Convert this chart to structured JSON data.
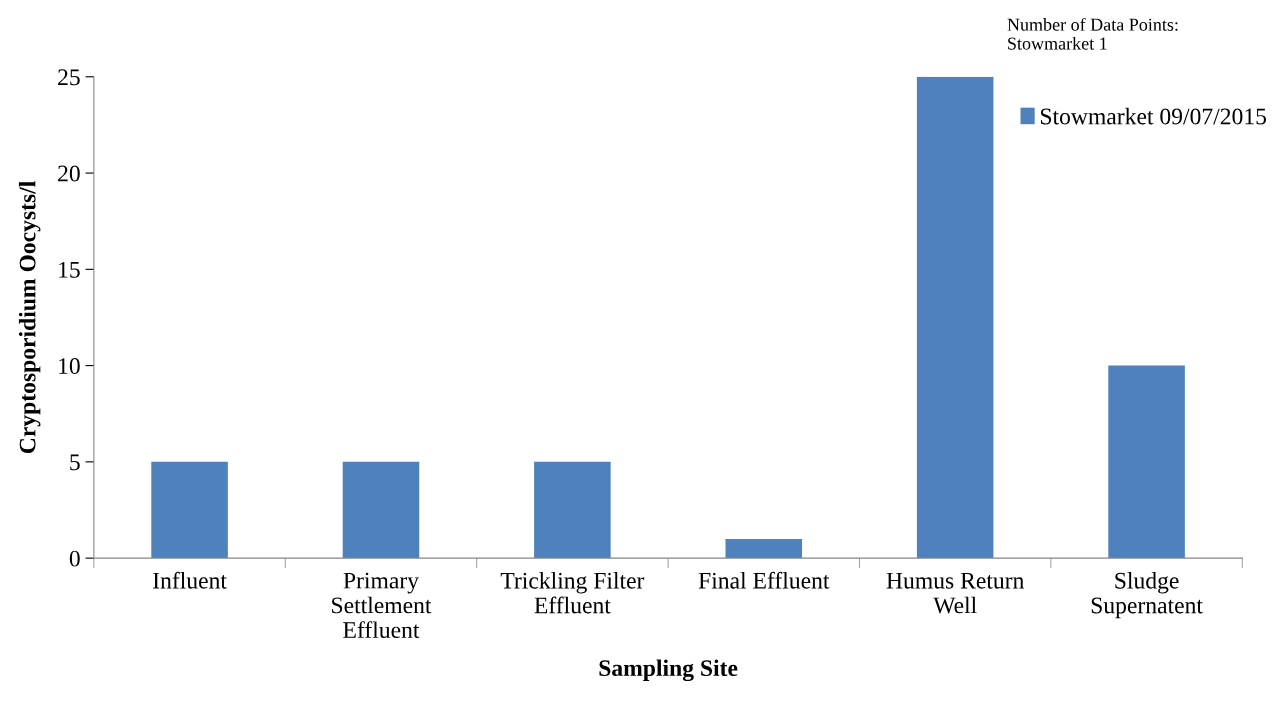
{
  "chart_data": {
    "type": "bar",
    "xlabel": "Sampling Site",
    "ylabel": "Cryptosporidium Oocysts/l",
    "categories": [
      "Influent",
      "Primary\nSettlement\nEffluent",
      "Trickling Filter\nEffluent",
      "Final Effluent",
      "Humus Return\nWell",
      "Sludge\nSupernatent"
    ],
    "series": [
      {
        "name": "Stowmarket 09/07/2015",
        "color": "#4f81bd",
        "values": [
          5,
          5,
          5,
          1,
          25,
          10
        ]
      }
    ],
    "ylim": [
      0,
      25
    ],
    "yticks": [
      0,
      5,
      10,
      15,
      20,
      25
    ],
    "grid": false,
    "legend": "top right",
    "annotations": [
      "Number of Data Points:\nStowmarket 1"
    ]
  }
}
